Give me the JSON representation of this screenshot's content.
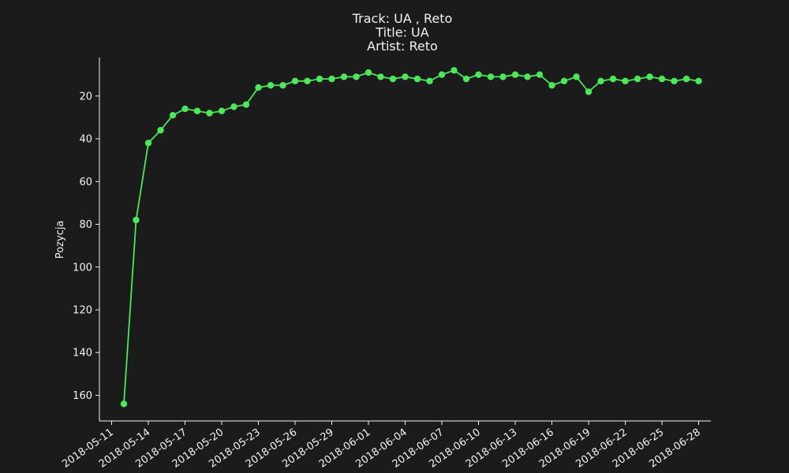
{
  "chart_data": {
    "type": "line",
    "title_lines": [
      "Track:  UA , Reto",
      "Title:  UA",
      "Artist:  Reto"
    ],
    "xlabel": "",
    "ylabel": "Pozycja",
    "y_inverted": true,
    "ylim": [
      172,
      2
    ],
    "xlim": [
      "2018-05-10",
      "2018-06-29"
    ],
    "y_ticks": [
      20,
      40,
      60,
      80,
      100,
      120,
      140,
      160
    ],
    "x_ticks": [
      "2018-05-11",
      "2018-05-14",
      "2018-05-17",
      "2018-05-20",
      "2018-05-23",
      "2018-05-26",
      "2018-05-29",
      "2018-06-01",
      "2018-06-04",
      "2018-06-07",
      "2018-06-10",
      "2018-06-13",
      "2018-06-16",
      "2018-06-19",
      "2018-06-22",
      "2018-06-25",
      "2018-06-28"
    ],
    "grid": false,
    "line_color": "#4de75b",
    "series": [
      {
        "x": [
          "2018-05-12",
          "2018-05-13",
          "2018-05-14",
          "2018-05-15",
          "2018-05-16",
          "2018-05-17",
          "2018-05-18",
          "2018-05-19",
          "2018-05-20",
          "2018-05-21",
          "2018-05-22",
          "2018-05-23",
          "2018-05-24",
          "2018-05-25",
          "2018-05-26",
          "2018-05-27",
          "2018-05-28",
          "2018-05-29",
          "2018-05-30",
          "2018-05-31",
          "2018-06-01",
          "2018-06-02",
          "2018-06-03",
          "2018-06-04",
          "2018-06-05",
          "2018-06-06",
          "2018-06-07",
          "2018-06-08",
          "2018-06-09",
          "2018-06-10",
          "2018-06-11",
          "2018-06-12",
          "2018-06-13",
          "2018-06-14",
          "2018-06-15",
          "2018-06-16",
          "2018-06-17",
          "2018-06-18",
          "2018-06-19",
          "2018-06-20",
          "2018-06-21",
          "2018-06-22",
          "2018-06-23",
          "2018-06-24",
          "2018-06-25",
          "2018-06-26",
          "2018-06-27",
          "2018-06-28"
        ],
        "values": [
          164,
          78,
          42,
          36,
          29,
          26,
          27,
          28,
          27,
          25,
          24,
          16,
          15,
          15,
          13,
          13,
          12,
          12,
          11,
          11,
          9,
          11,
          12,
          11,
          12,
          13,
          10,
          8,
          12,
          10,
          11,
          11,
          10,
          11,
          10,
          15,
          13,
          11,
          18,
          13,
          12,
          13,
          12,
          11,
          12,
          13,
          12,
          13
        ]
      }
    ]
  }
}
